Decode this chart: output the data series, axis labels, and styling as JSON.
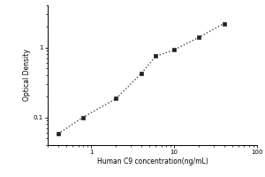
{
  "x_data": [
    0.4,
    0.8,
    2.0,
    4.0,
    6.0,
    10.0,
    20.0,
    40.0
  ],
  "y_data": [
    0.058,
    0.1,
    0.185,
    0.42,
    0.75,
    0.92,
    1.4,
    2.2
  ],
  "xlabel": "Human C9 concentration(ng/mL)",
  "ylabel": "Optical Density",
  "xlim": [
    0.3,
    100
  ],
  "ylim": [
    0.04,
    4
  ],
  "line_color": "#444444",
  "marker_color": "#222222",
  "marker_style": "s",
  "marker_size": 3,
  "line_style": ":",
  "line_width": 1.0,
  "background_color": "#ffffff",
  "xlabel_fontsize": 5.5,
  "ylabel_fontsize": 5.5,
  "tick_fontsize": 5
}
